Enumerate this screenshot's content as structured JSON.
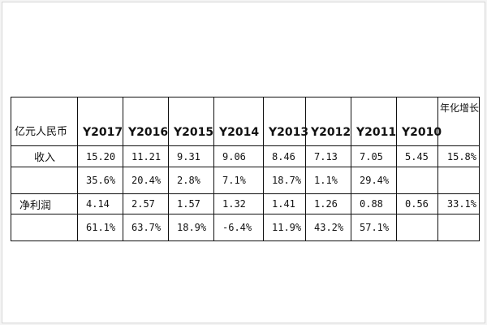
{
  "table": {
    "corner_label": "亿元人民币",
    "years": [
      "Y2017",
      "Y2016",
      "Y2015",
      "Y2014",
      "Y2013",
      "Y2012",
      "Y2011",
      "Y2010"
    ],
    "growth_header": "年化增长",
    "revenue": {
      "label": "收入",
      "values": [
        "15.20",
        "11.21",
        "9.31",
        "9.06",
        "8.46",
        "7.13",
        "7.05",
        "5.45"
      ],
      "cagr": "15.8%",
      "growth": [
        "35.6%",
        "20.4%",
        "2.8%",
        "7.1%",
        "18.7%",
        "1.1%",
        "29.4%",
        ""
      ]
    },
    "net_profit": {
      "label": "净利润",
      "values": [
        "4.14",
        "2.57",
        "1.57",
        "1.32",
        "1.41",
        "1.26",
        "0.88",
        "0.56"
      ],
      "cagr": "33.1%",
      "growth": [
        "61.1%",
        "63.7%",
        "18.9%",
        "-6.4%",
        "11.9%",
        "43.2%",
        "57.1%",
        ""
      ]
    }
  }
}
